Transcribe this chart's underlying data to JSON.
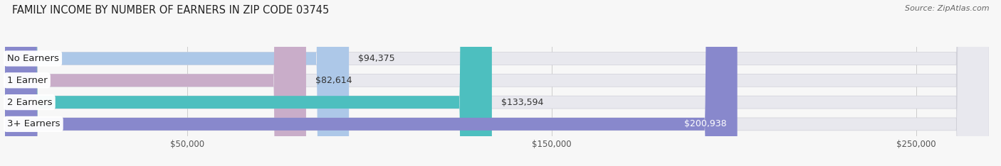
{
  "title": "FAMILY INCOME BY NUMBER OF EARNERS IN ZIP CODE 03745",
  "source": "Source: ZipAtlas.com",
  "categories": [
    "No Earners",
    "1 Earner",
    "2 Earners",
    "3+ Earners"
  ],
  "values": [
    94375,
    82614,
    133594,
    200938
  ],
  "bar_colors": [
    "#adc8e8",
    "#c9adc9",
    "#4dbfbf",
    "#8888cc"
  ],
  "bar_bg_color": "#e8e8ee",
  "value_labels": [
    "$94,375",
    "$82,614",
    "$133,594",
    "$200,938"
  ],
  "value_label_inside": [
    false,
    false,
    false,
    true
  ],
  "xlim_max": 270000,
  "xticks": [
    50000,
    150000,
    250000
  ],
  "xtick_labels": [
    "$50,000",
    "$150,000",
    "$250,000"
  ],
  "title_fontsize": 10.5,
  "label_fontsize": 9.5,
  "value_fontsize": 9,
  "bg_color": "#f7f7f7",
  "bar_height": 0.58,
  "figsize": [
    14.06,
    2.34
  ],
  "dpi": 100
}
